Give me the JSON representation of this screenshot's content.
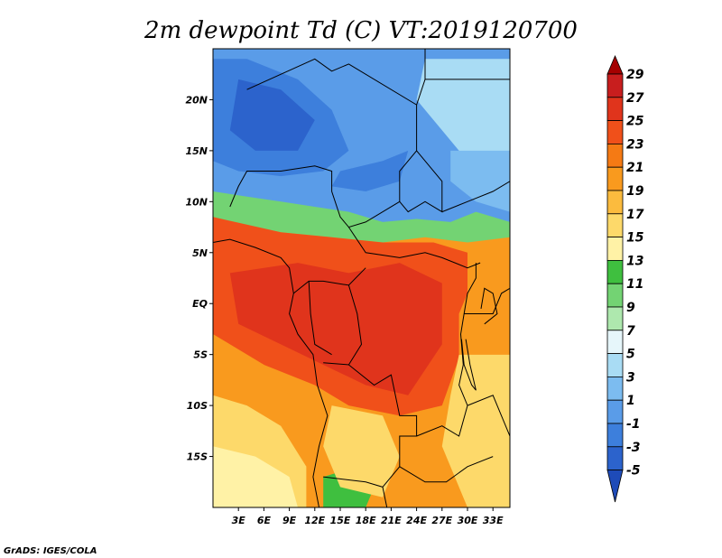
{
  "title": "2m dewpoint Td (C) VT:2019120700",
  "credit": "GrADS: IGES/COLA",
  "map": {
    "lon_range": [
      0,
      35
    ],
    "lat_range": [
      -20,
      25
    ],
    "x_ticks": [
      {
        "lon": 3,
        "label": "3E"
      },
      {
        "lon": 6,
        "label": "6E"
      },
      {
        "lon": 9,
        "label": "9E"
      },
      {
        "lon": 12,
        "label": "12E"
      },
      {
        "lon": 15,
        "label": "15E"
      },
      {
        "lon": 18,
        "label": "18E"
      },
      {
        "lon": 21,
        "label": "21E"
      },
      {
        "lon": 24,
        "label": "24E"
      },
      {
        "lon": 27,
        "label": "27E"
      },
      {
        "lon": 30,
        "label": "30E"
      },
      {
        "lon": 33,
        "label": "33E"
      }
    ],
    "y_ticks": [
      {
        "lat": 20,
        "label": "20N"
      },
      {
        "lat": 15,
        "label": "15N"
      },
      {
        "lat": 10,
        "label": "10N"
      },
      {
        "lat": 5,
        "label": "5N"
      },
      {
        "lat": 0,
        "label": "EQ"
      },
      {
        "lat": -5,
        "label": "5S"
      },
      {
        "lat": -10,
        "label": "10S"
      },
      {
        "lat": -15,
        "label": "15S"
      }
    ]
  },
  "colorbar": {
    "levels": [
      "29",
      "27",
      "25",
      "23",
      "21",
      "19",
      "17",
      "15",
      "13",
      "11",
      "9",
      "7",
      "5",
      "3",
      "1",
      "-1",
      "-3",
      "-5"
    ],
    "colors": [
      "#a50000",
      "#c81e1e",
      "#e0341c",
      "#f0501a",
      "#f57a14",
      "#f99a1e",
      "#fbbb3e",
      "#fdd96a",
      "#fff2a6",
      "#3fbf3f",
      "#73d373",
      "#aee8ae",
      "#e6f6fa",
      "#a9dcf4",
      "#7cbcf0",
      "#5a9ce8",
      "#3d7fdc",
      "#2c63cc",
      "#1e4bb8"
    ]
  },
  "field_colors": {
    "very_dry": "#2c63cc",
    "dry": "#3d7fdc",
    "mid_dry": "#5a9ce8",
    "light_dry": "#7cbcf0",
    "pale": "#a9dcf4",
    "green": "#3fbf3f",
    "light_green": "#73d373",
    "yellow": "#fff2a6",
    "light_orange": "#fdd96a",
    "orange": "#f99a1e",
    "dark_orange": "#f57a14",
    "red_orange": "#f0501a",
    "red": "#e0341c",
    "border": "#000000"
  }
}
